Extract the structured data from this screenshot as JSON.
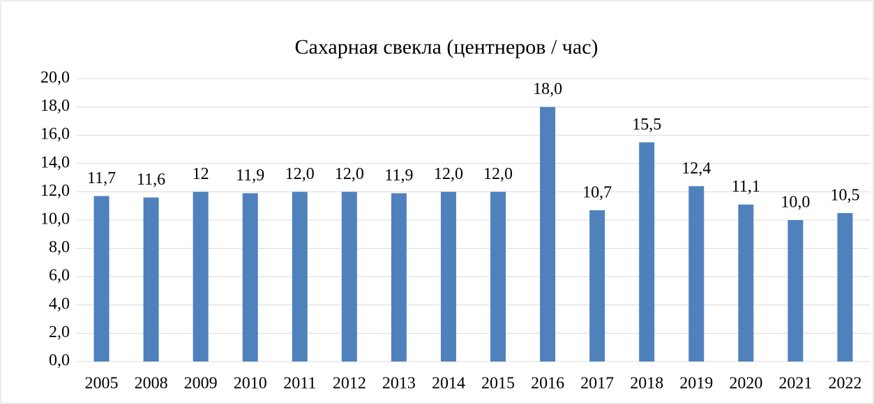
{
  "chart_data": {
    "type": "bar",
    "title": "Сахарная свекла (центнеров / час)",
    "categories": [
      "2005",
      "2008",
      "2009",
      "2010",
      "2011",
      "2012",
      "2013",
      "2014",
      "2015",
      "2016",
      "2017",
      "2018",
      "2019",
      "2020",
      "2021",
      "2022"
    ],
    "values": [
      11.7,
      11.6,
      12,
      11.9,
      12,
      12,
      11.9,
      12,
      12,
      18,
      10.7,
      15.5,
      12.4,
      11.1,
      10,
      10.5
    ],
    "value_labels": [
      "11,7",
      "11,6",
      "12",
      "11,9",
      "12,0",
      "12,0",
      "11,9",
      "12,0",
      "12,0",
      "18,0",
      "10,7",
      "15,5",
      "12,4",
      "11,1",
      "10,0",
      "10,5"
    ],
    "color": "#4f81bd",
    "ylim": [
      0,
      20
    ],
    "yticks": [
      {
        "value": 0,
        "label": "0,0"
      },
      {
        "value": 2,
        "label": "2,0"
      },
      {
        "value": 4,
        "label": "4,0"
      },
      {
        "value": 6,
        "label": "6,0"
      },
      {
        "value": 8,
        "label": "8,0"
      },
      {
        "value": 10,
        "label": "10,0"
      },
      {
        "value": 12,
        "label": "12,0"
      },
      {
        "value": 14,
        "label": "14,0"
      },
      {
        "value": 16,
        "label": "16,0"
      },
      {
        "value": 18,
        "label": "18,0"
      },
      {
        "value": 20,
        "label": "20,0"
      }
    ],
    "grid": true
  }
}
